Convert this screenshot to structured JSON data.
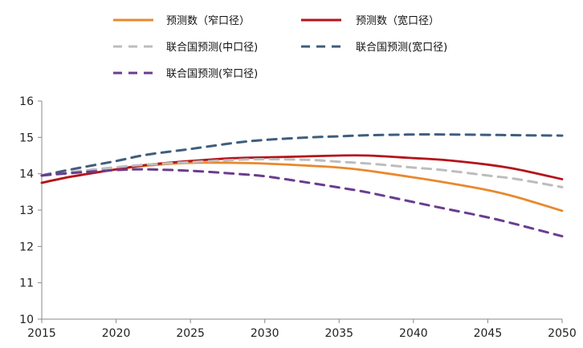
{
  "chart_data": {
    "type": "line",
    "title": "",
    "xlabel": "",
    "ylabel": "",
    "xlim": [
      2015,
      2050
    ],
    "ylim": [
      10,
      16
    ],
    "x_ticks": [
      2015,
      2020,
      2025,
      2030,
      2035,
      2040,
      2045,
      2050
    ],
    "y_ticks": [
      10,
      11,
      12,
      13,
      14,
      15,
      16
    ],
    "grid": false,
    "legend_position": "top",
    "x": [
      2015,
      2017,
      2020,
      2022,
      2025,
      2028,
      2030,
      2033,
      2035,
      2037,
      2040,
      2042,
      2045,
      2047,
      2050
    ],
    "series": [
      {
        "name": "预测数（窄口径）",
        "color": "#E8892C",
        "dash": "solid",
        "values": [
          13.75,
          13.92,
          14.12,
          14.22,
          14.3,
          14.3,
          14.28,
          14.22,
          14.17,
          14.08,
          13.9,
          13.77,
          13.55,
          13.35,
          12.98
        ]
      },
      {
        "name": "预测数（宽口径）",
        "color": "#B5121B",
        "dash": "solid",
        "values": [
          13.75,
          13.92,
          14.12,
          14.24,
          14.35,
          14.43,
          14.45,
          14.48,
          14.5,
          14.5,
          14.43,
          14.38,
          14.25,
          14.12,
          13.85
        ]
      },
      {
        "name": "联合国预测(中口径)",
        "color": "#BDBDBD",
        "dash": "dashed",
        "values": [
          13.95,
          14.05,
          14.18,
          14.25,
          14.32,
          14.38,
          14.4,
          14.38,
          14.33,
          14.28,
          14.17,
          14.1,
          13.95,
          13.85,
          13.63
        ]
      },
      {
        "name": "联合国预测(宽口径)",
        "color": "#3F5E7C",
        "dash": "dashed",
        "values": [
          13.95,
          14.12,
          14.35,
          14.52,
          14.68,
          14.85,
          14.93,
          15.0,
          15.03,
          15.06,
          15.08,
          15.08,
          15.07,
          15.06,
          15.05
        ]
      },
      {
        "name": "联合国预测(窄口径)",
        "color": "#6A3D8F",
        "dash": "dashed",
        "values": [
          13.95,
          14.02,
          14.1,
          14.12,
          14.08,
          14.0,
          13.93,
          13.75,
          13.62,
          13.48,
          13.22,
          13.05,
          12.8,
          12.6,
          12.28
        ]
      }
    ]
  }
}
